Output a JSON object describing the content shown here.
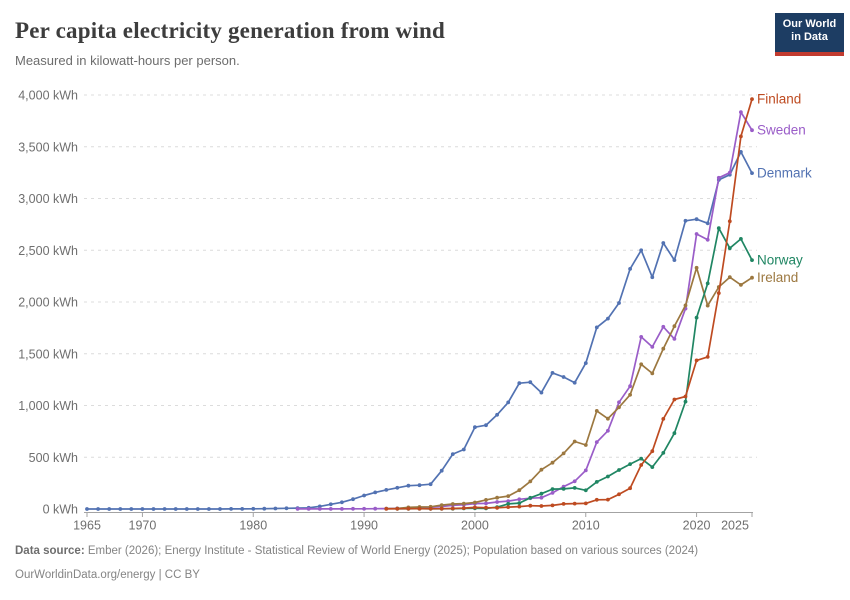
{
  "header": {
    "title": "Per capita electricity generation from wind",
    "subtitle": "Measured in kilowatt-hours per person.",
    "logo_line1": "Our World",
    "logo_line2": "in Data"
  },
  "footer": {
    "source_label": "Data source:",
    "source_text": " Ember (2026); Energy Institute - Statistical Review of World Energy (2025); Population based on various sources (2024)",
    "note_text": "OurWorldinData.org/energy | CC BY"
  },
  "chart_data": {
    "type": "line",
    "unit": "kWh per person",
    "grid": "horizontal dashed",
    "legend_position": "end-of-line labels",
    "plot": {
      "x0": 87,
      "x1": 752,
      "y0": 509,
      "y1": 95
    },
    "x_axis": {
      "min": 1965,
      "max": 2025,
      "tick_values": [
        1965,
        1970,
        1980,
        1990,
        2000,
        2010,
        2020,
        2025
      ],
      "tick_labels": [
        "1965",
        "1970",
        "1980",
        "1990",
        "2000",
        "2010",
        "2020",
        "2025"
      ]
    },
    "y_axis": {
      "min": 0,
      "max": 4000,
      "tick_values": [
        0,
        500,
        1000,
        1500,
        2000,
        2500,
        3000,
        3500,
        4000
      ],
      "tick_labels": [
        "0 kWh",
        "500 kWh",
        "1,000 kWh",
        "1,500 kWh",
        "2,000 kWh",
        "2,500 kWh",
        "3,000 kWh",
        "3,500 kWh",
        "4,000 kWh"
      ]
    },
    "series": [
      {
        "name": "Denmark",
        "color": "#5272B2",
        "points": [
          [
            1965,
            0
          ],
          [
            1966,
            0
          ],
          [
            1967,
            0
          ],
          [
            1968,
            0
          ],
          [
            1969,
            0
          ],
          [
            1970,
            0
          ],
          [
            1971,
            0
          ],
          [
            1972,
            0
          ],
          [
            1973,
            0
          ],
          [
            1974,
            0
          ],
          [
            1975,
            0
          ],
          [
            1976,
            0
          ],
          [
            1977,
            0
          ],
          [
            1978,
            1
          ],
          [
            1979,
            1
          ],
          [
            1980,
            2
          ],
          [
            1981,
            3
          ],
          [
            1982,
            5
          ],
          [
            1983,
            7
          ],
          [
            1984,
            9
          ],
          [
            1985,
            12
          ],
          [
            1986,
            25
          ],
          [
            1987,
            45
          ],
          [
            1988,
            65
          ],
          [
            1989,
            95
          ],
          [
            1990,
            130
          ],
          [
            1991,
            160
          ],
          [
            1992,
            185
          ],
          [
            1993,
            205
          ],
          [
            1994,
            225
          ],
          [
            1995,
            230
          ],
          [
            1996,
            240
          ],
          [
            1997,
            370
          ],
          [
            1998,
            530
          ],
          [
            1999,
            575
          ],
          [
            2000,
            790
          ],
          [
            2001,
            810
          ],
          [
            2002,
            910
          ],
          [
            2003,
            1030
          ],
          [
            2004,
            1215
          ],
          [
            2005,
            1225
          ],
          [
            2006,
            1125
          ],
          [
            2007,
            1315
          ],
          [
            2008,
            1275
          ],
          [
            2009,
            1220
          ],
          [
            2010,
            1410
          ],
          [
            2011,
            1755
          ],
          [
            2012,
            1840
          ],
          [
            2013,
            1990
          ],
          [
            2014,
            2320
          ],
          [
            2015,
            2500
          ],
          [
            2016,
            2240
          ],
          [
            2017,
            2570
          ],
          [
            2018,
            2405
          ],
          [
            2019,
            2785
          ],
          [
            2020,
            2800
          ],
          [
            2021,
            2760
          ],
          [
            2022,
            3180
          ],
          [
            2023,
            3230
          ],
          [
            2024,
            3450
          ],
          [
            2025,
            3245
          ]
        ]
      },
      {
        "name": "Sweden",
        "color": "#9A5DC8",
        "points": [
          [
            1984,
            1
          ],
          [
            1985,
            1
          ],
          [
            1986,
            1
          ],
          [
            1987,
            1
          ],
          [
            1988,
            1
          ],
          [
            1989,
            2
          ],
          [
            1990,
            2
          ],
          [
            1991,
            3
          ],
          [
            1992,
            4
          ],
          [
            1993,
            6
          ],
          [
            1994,
            9
          ],
          [
            1995,
            11
          ],
          [
            1996,
            16
          ],
          [
            1997,
            24
          ],
          [
            1998,
            36
          ],
          [
            1999,
            41
          ],
          [
            2000,
            52
          ],
          [
            2001,
            54
          ],
          [
            2002,
            68
          ],
          [
            2003,
            76
          ],
          [
            2004,
            94
          ],
          [
            2005,
            104
          ],
          [
            2006,
            109
          ],
          [
            2007,
            156
          ],
          [
            2008,
            216
          ],
          [
            2009,
            268
          ],
          [
            2010,
            373
          ],
          [
            2011,
            646
          ],
          [
            2012,
            756
          ],
          [
            2013,
            1031
          ],
          [
            2014,
            1186
          ],
          [
            2015,
            1663
          ],
          [
            2016,
            1566
          ],
          [
            2017,
            1760
          ],
          [
            2018,
            1643
          ],
          [
            2019,
            1936
          ],
          [
            2020,
            2657
          ],
          [
            2021,
            2601
          ],
          [
            2022,
            3200
          ],
          [
            2023,
            3250
          ],
          [
            2024,
            3835
          ],
          [
            2025,
            3660
          ]
        ]
      },
      {
        "name": "Ireland",
        "color": "#9C7840",
        "points": [
          [
            1992,
            4
          ],
          [
            1993,
            5
          ],
          [
            1994,
            15
          ],
          [
            1995,
            19
          ],
          [
            1996,
            21
          ],
          [
            1997,
            38
          ],
          [
            1998,
            48
          ],
          [
            1999,
            52
          ],
          [
            2000,
            63
          ],
          [
            2001,
            88
          ],
          [
            2002,
            109
          ],
          [
            2003,
            125
          ],
          [
            2004,
            182
          ],
          [
            2005,
            267
          ],
          [
            2006,
            380
          ],
          [
            2007,
            447
          ],
          [
            2008,
            537
          ],
          [
            2009,
            652
          ],
          [
            2010,
            618
          ],
          [
            2011,
            948
          ],
          [
            2012,
            872
          ],
          [
            2013,
            983
          ],
          [
            2014,
            1103
          ],
          [
            2015,
            1398
          ],
          [
            2016,
            1310
          ],
          [
            2017,
            1549
          ],
          [
            2018,
            1766
          ],
          [
            2019,
            1967
          ],
          [
            2020,
            2330
          ],
          [
            2021,
            1965
          ],
          [
            2022,
            2145
          ],
          [
            2023,
            2240
          ],
          [
            2024,
            2165
          ],
          [
            2025,
            2235
          ]
        ]
      },
      {
        "name": "Norway",
        "color": "#208663",
        "points": [
          [
            1993,
            2
          ],
          [
            1994,
            2
          ],
          [
            1995,
            3
          ],
          [
            1996,
            2
          ],
          [
            1997,
            2
          ],
          [
            1998,
            3
          ],
          [
            1999,
            6
          ],
          [
            2000,
            7
          ],
          [
            2001,
            6
          ],
          [
            2002,
            17
          ],
          [
            2003,
            49
          ],
          [
            2004,
            57
          ],
          [
            2005,
            108
          ],
          [
            2006,
            148
          ],
          [
            2007,
            192
          ],
          [
            2008,
            194
          ],
          [
            2009,
            204
          ],
          [
            2010,
            181
          ],
          [
            2011,
            262
          ],
          [
            2012,
            314
          ],
          [
            2013,
            377
          ],
          [
            2014,
            434
          ],
          [
            2015,
            487
          ],
          [
            2016,
            405
          ],
          [
            2017,
            542
          ],
          [
            2018,
            732
          ],
          [
            2019,
            1038
          ],
          [
            2020,
            1849
          ],
          [
            2021,
            2180
          ],
          [
            2022,
            2713
          ],
          [
            2023,
            2520
          ],
          [
            2024,
            2610
          ],
          [
            2025,
            2405
          ]
        ]
      },
      {
        "name": "Finland",
        "color": "#BE4B21",
        "points": [
          [
            1992,
            1
          ],
          [
            1993,
            2
          ],
          [
            1994,
            3
          ],
          [
            1995,
            3
          ],
          [
            1996,
            2
          ],
          [
            1997,
            3
          ],
          [
            1998,
            5
          ],
          [
            1999,
            9
          ],
          [
            2000,
            15
          ],
          [
            2001,
            13
          ],
          [
            2002,
            12
          ],
          [
            2003,
            18
          ],
          [
            2004,
            23
          ],
          [
            2005,
            32
          ],
          [
            2006,
            29
          ],
          [
            2007,
            35
          ],
          [
            2008,
            49
          ],
          [
            2009,
            52
          ],
          [
            2010,
            54
          ],
          [
            2011,
            89
          ],
          [
            2012,
            91
          ],
          [
            2013,
            142
          ],
          [
            2014,
            201
          ],
          [
            2015,
            425
          ],
          [
            2016,
            558
          ],
          [
            2017,
            871
          ],
          [
            2018,
            1058
          ],
          [
            2019,
            1087
          ],
          [
            2020,
            1436
          ],
          [
            2021,
            1470
          ],
          [
            2022,
            2086
          ],
          [
            2023,
            2780
          ],
          [
            2024,
            3600
          ],
          [
            2025,
            3960
          ]
        ]
      }
    ]
  }
}
